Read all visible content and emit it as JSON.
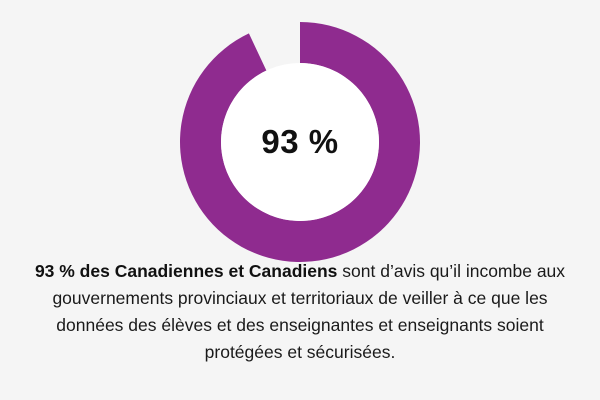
{
  "colors": {
    "background": "#f5f5f5",
    "arc": "#8f2b8f",
    "inner": "#ffffff",
    "text": "#111111"
  },
  "chart_data": {
    "type": "pie",
    "values": [
      93,
      7
    ],
    "categories": [
      "",
      ""
    ],
    "center_label": "93 %",
    "style": "donut"
  },
  "caption": {
    "bold": "93 % des Canadiennes et Canadiens",
    "rest": " sont d’avis qu’il incombe aux gouvernements provinciaux et territoriaux de veiller à ce que les données des élèves et des enseignantes et enseignants soient protégées et sécurisées."
  }
}
